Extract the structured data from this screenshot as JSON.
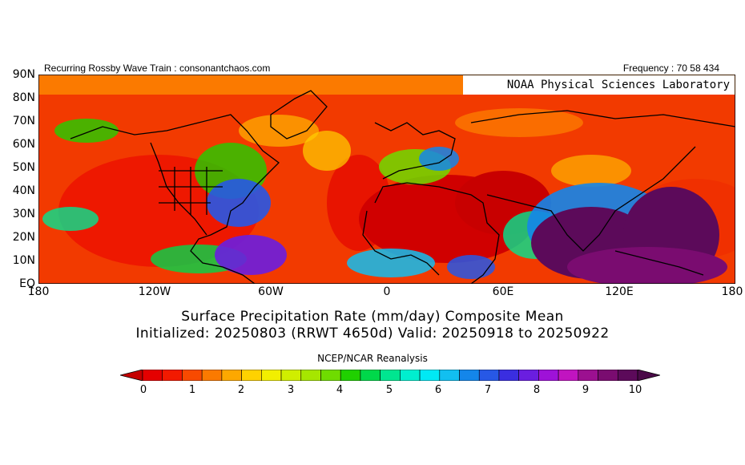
{
  "header": {
    "left": "Recurring Rossby Wave Train : consonantchaos.com",
    "right": "Frequency : 70 58 434"
  },
  "watermark": "NOAA Physical Sciences Laboratory",
  "map": {
    "lat_labels": [
      "90N",
      "80N",
      "70N",
      "60N",
      "50N",
      "40N",
      "30N",
      "20N",
      "10N",
      "EQ"
    ],
    "lon_labels": [
      "180",
      "120W",
      "60W",
      "0",
      "60E",
      "120E",
      "180"
    ]
  },
  "title": {
    "line1": "Surface Precipitation Rate (mm/day) Composite Mean",
    "line2": "Initialized: 20250803 (RRWT 4650d) Valid: 20250918 to 20250922"
  },
  "source": "NCEP/NCAR Reanalysis",
  "colorbar": {
    "labels": [
      "0",
      "1",
      "2",
      "3",
      "4",
      "5",
      "6",
      "7",
      "8",
      "9",
      "10"
    ],
    "colors": [
      "#e40000",
      "#f21a00",
      "#f84a00",
      "#fb7a00",
      "#fda800",
      "#ffd200",
      "#f2ef00",
      "#d0ee00",
      "#a6e600",
      "#6fdc00",
      "#20d000",
      "#00d84a",
      "#00e690",
      "#00efcf",
      "#00e9f5",
      "#12bff0",
      "#1486ea",
      "#2758e6",
      "#3a2ee0",
      "#6a1ee0",
      "#9e12d8",
      "#c114c0",
      "#9c1090",
      "#7a0c70",
      "#5c0a5a"
    ],
    "under_color": "#c40000",
    "over_color": "#4a0a48"
  }
}
